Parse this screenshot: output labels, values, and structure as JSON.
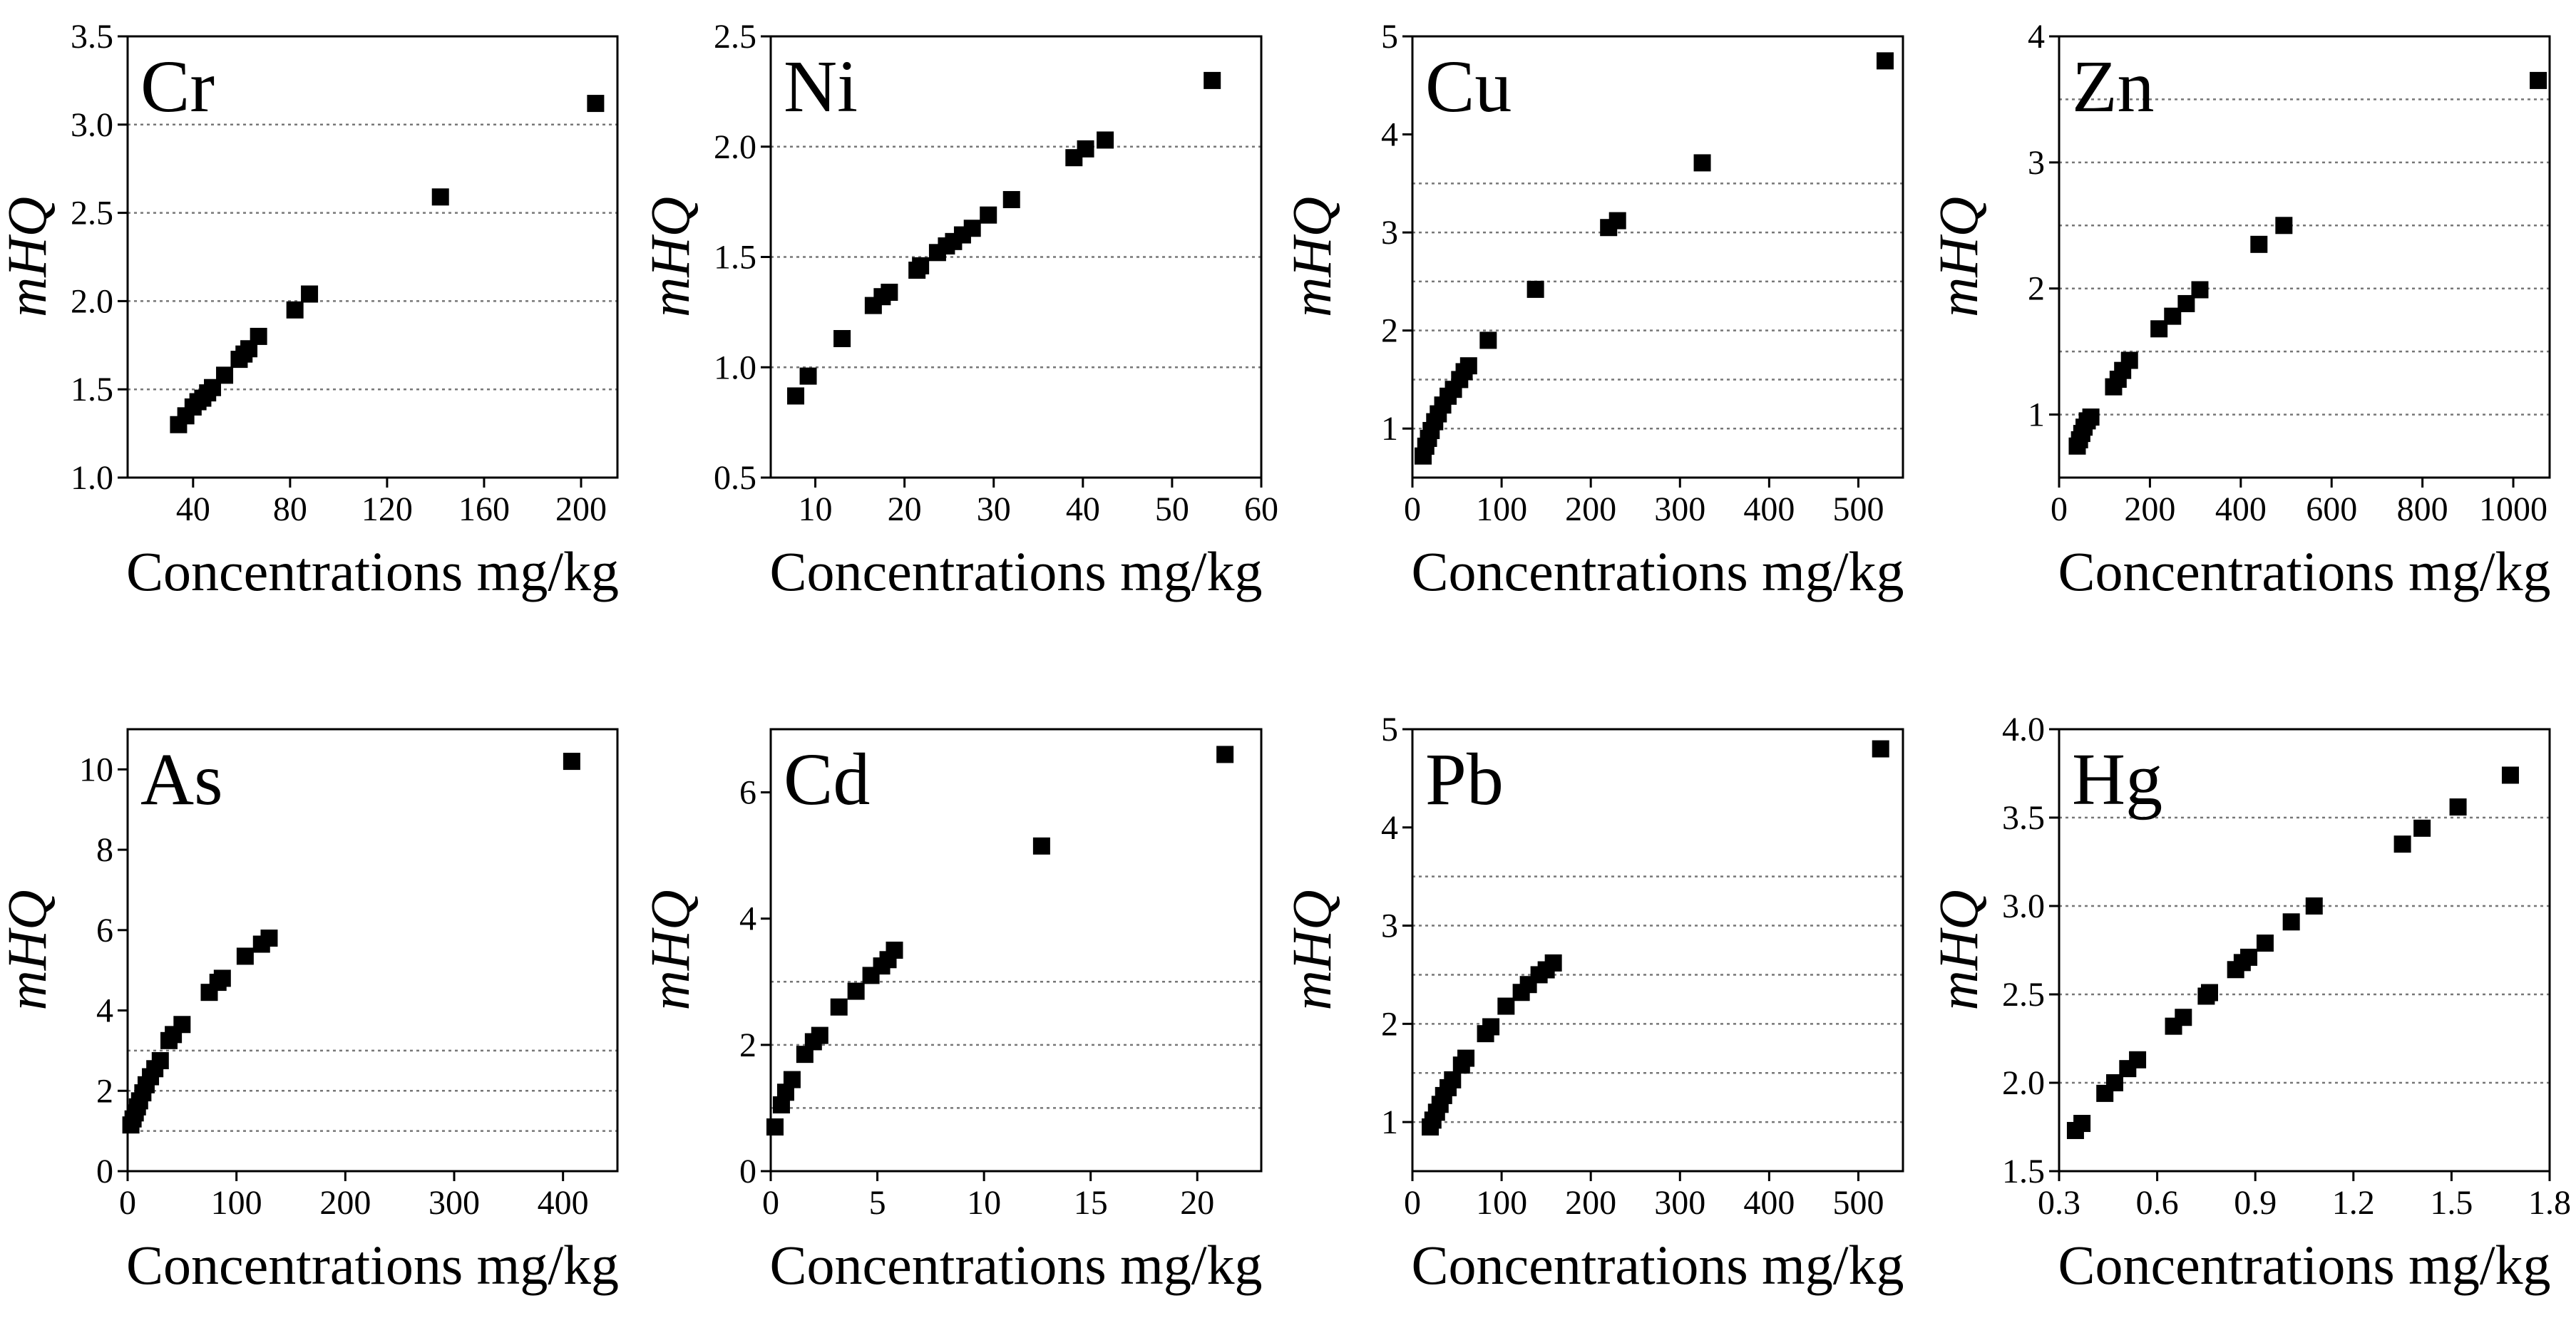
{
  "figure": {
    "x_label_common": "Concentrations mg/kg",
    "y_label_common": "mHQ"
  },
  "chart_data": [
    {
      "type": "scatter",
      "title": "Cr",
      "xlabel": "Concentrations mg/kg",
      "ylabel": "mHQ",
      "xlim": [
        13,
        215
      ],
      "ylim": [
        1.0,
        3.5
      ],
      "xticks": [
        40,
        80,
        120,
        160,
        200
      ],
      "xtick_labels": [
        "40",
        "80",
        "120",
        "160",
        "200"
      ],
      "yticks": [
        1.0,
        1.5,
        2.0,
        2.5,
        3.0,
        3.5
      ],
      "ytick_labels": [
        "1.0",
        "1.5",
        "2.0",
        "2.5",
        "3.0",
        "3.5"
      ],
      "grid_y": [
        1.5,
        2.0,
        2.5,
        3.0
      ],
      "x": [
        34,
        37,
        40,
        42,
        44,
        46,
        48,
        53,
        59,
        61,
        63,
        67,
        82,
        88,
        142,
        206
      ],
      "y": [
        1.3,
        1.35,
        1.4,
        1.43,
        1.45,
        1.48,
        1.51,
        1.58,
        1.67,
        1.7,
        1.73,
        1.8,
        1.95,
        2.04,
        2.59,
        3.12
      ]
    },
    {
      "type": "scatter",
      "title": "Ni",
      "xlabel": "Concentrations mg/kg",
      "ylabel": "mHQ",
      "xlim": [
        5,
        60
      ],
      "ylim": [
        0.5,
        2.5
      ],
      "xticks": [
        10,
        20,
        30,
        40,
        50,
        60
      ],
      "xtick_labels": [
        "10",
        "20",
        "30",
        "40",
        "50",
        "60"
      ],
      "yticks": [
        0.5,
        1.0,
        1.5,
        2.0,
        2.5
      ],
      "ytick_labels": [
        "0.5",
        "1.0",
        "1.5",
        "2.0",
        "2.5"
      ],
      "grid_y": [
        1.0,
        1.5,
        2.0
      ],
      "x": [
        7.8,
        9.2,
        13,
        16.5,
        17.5,
        18.3,
        21.4,
        21.8,
        23.7,
        24.7,
        25.5,
        26.5,
        27.6,
        29.4,
        32.0,
        39.0,
        40.3,
        42.5,
        54.5
      ],
      "y": [
        0.87,
        0.96,
        1.13,
        1.28,
        1.32,
        1.34,
        1.44,
        1.46,
        1.52,
        1.55,
        1.57,
        1.6,
        1.63,
        1.69,
        1.76,
        1.95,
        1.99,
        2.03,
        2.3
      ]
    },
    {
      "type": "scatter",
      "title": "Cu",
      "xlabel": "Concentrations mg/kg",
      "ylabel": "mHQ",
      "xlim": [
        0,
        550
      ],
      "ylim": [
        0.5,
        5
      ],
      "xticks": [
        0,
        100,
        200,
        300,
        400,
        500
      ],
      "xtick_labels": [
        "0",
        "100",
        "200",
        "300",
        "400",
        "500"
      ],
      "yticks": [
        1,
        2,
        3,
        4,
        5
      ],
      "ytick_labels": [
        "1",
        "2",
        "3",
        "4",
        "5"
      ],
      "grid_y": [
        1,
        1.5,
        2,
        2.5,
        3,
        3.5
      ],
      "x": [
        12,
        15,
        18,
        21,
        25,
        29,
        34,
        40,
        46,
        53,
        58,
        63,
        85,
        138,
        220,
        230,
        325,
        530
      ],
      "y": [
        0.72,
        0.82,
        0.9,
        0.98,
        1.07,
        1.15,
        1.24,
        1.33,
        1.4,
        1.5,
        1.58,
        1.64,
        1.9,
        2.42,
        3.05,
        3.12,
        3.71,
        4.75
      ]
    },
    {
      "type": "scatter",
      "title": "Zn",
      "xlabel": "Concentrations mg/kg",
      "ylabel": "mHQ",
      "xlim": [
        0,
        1080
      ],
      "ylim": [
        0.5,
        4
      ],
      "xticks": [
        0,
        200,
        400,
        600,
        800,
        1000
      ],
      "xtick_labels": [
        "0",
        "200",
        "400",
        "600",
        "800",
        "1000"
      ],
      "yticks": [
        1,
        2,
        3,
        4
      ],
      "ytick_labels": [
        "1",
        "2",
        "3",
        "4"
      ],
      "grid_y": [
        1,
        1.5,
        2,
        2.5,
        3,
        3.5
      ],
      "x": [
        40,
        45,
        50,
        55,
        62,
        70,
        120,
        130,
        140,
        155,
        220,
        250,
        280,
        310,
        440,
        495,
        1055
      ],
      "y": [
        0.75,
        0.8,
        0.85,
        0.9,
        0.95,
        0.98,
        1.22,
        1.28,
        1.35,
        1.43,
        1.68,
        1.78,
        1.88,
        1.99,
        2.35,
        2.5,
        3.65
      ]
    },
    {
      "type": "scatter",
      "title": "As",
      "xlabel": "Concentrations mg/kg",
      "ylabel": "mHQ",
      "xlim": [
        0,
        450
      ],
      "ylim": [
        0,
        11
      ],
      "xticks": [
        0,
        100,
        200,
        300,
        400
      ],
      "xtick_labels": [
        "0",
        "100",
        "200",
        "300",
        "400"
      ],
      "yticks": [
        0,
        2,
        4,
        6,
        8,
        10
      ],
      "ytick_labels": [
        "0",
        "2",
        "4",
        "6",
        "8",
        "10"
      ],
      "grid_y": [
        1,
        2,
        3
      ],
      "x": [
        3,
        5,
        7,
        9,
        11,
        14,
        17,
        21,
        25,
        30,
        38,
        42,
        50,
        75,
        83,
        87,
        108,
        123,
        130,
        408
      ],
      "y": [
        1.15,
        1.3,
        1.45,
        1.6,
        1.75,
        1.95,
        2.15,
        2.35,
        2.55,
        2.75,
        3.25,
        3.4,
        3.65,
        4.45,
        4.7,
        4.8,
        5.35,
        5.65,
        5.8,
        10.2
      ]
    },
    {
      "type": "scatter",
      "title": "Cd",
      "xlabel": "Concentrations mg/kg",
      "ylabel": "mHQ",
      "xlim": [
        0,
        23
      ],
      "ylim": [
        0,
        7
      ],
      "xticks": [
        0,
        5,
        10,
        15,
        20
      ],
      "xtick_labels": [
        "0",
        "5",
        "10",
        "15",
        "20"
      ],
      "yticks": [
        0,
        2,
        4,
        6
      ],
      "ytick_labels": [
        "0",
        "2",
        "4",
        "6"
      ],
      "grid_y": [
        1,
        2,
        3
      ],
      "x": [
        0.2,
        0.5,
        0.7,
        1.0,
        1.6,
        2.0,
        2.3,
        3.2,
        4.0,
        4.7,
        5.2,
        5.5,
        5.8,
        12.7,
        21.3
      ],
      "y": [
        0.7,
        1.05,
        1.25,
        1.45,
        1.85,
        2.05,
        2.15,
        2.6,
        2.85,
        3.1,
        3.25,
        3.35,
        3.5,
        5.15,
        6.6
      ]
    },
    {
      "type": "scatter",
      "title": "Pb",
      "xlabel": "Concentrations mg/kg",
      "ylabel": "mHQ",
      "xlim": [
        0,
        550
      ],
      "ylim": [
        0.5,
        5
      ],
      "xticks": [
        0,
        100,
        200,
        300,
        400,
        500
      ],
      "xtick_labels": [
        "0",
        "100",
        "200",
        "300",
        "400",
        "500"
      ],
      "yticks": [
        1,
        2,
        3,
        4,
        5
      ],
      "ytick_labels": [
        "1",
        "2",
        "3",
        "4",
        "5"
      ],
      "grid_y": [
        1,
        1.5,
        2,
        2.5,
        3,
        3.5
      ],
      "x": [
        20,
        23,
        27,
        31,
        35,
        40,
        45,
        55,
        60,
        82,
        88,
        105,
        122,
        130,
        142,
        150,
        158,
        525
      ],
      "y": [
        0.95,
        1.02,
        1.1,
        1.18,
        1.27,
        1.35,
        1.43,
        1.58,
        1.65,
        1.9,
        1.97,
        2.18,
        2.32,
        2.4,
        2.5,
        2.55,
        2.62,
        4.8
      ]
    },
    {
      "type": "scatter",
      "title": "Hg",
      "xlabel": "Concentrations mg/kg",
      "ylabel": "mHQ",
      "xlim": [
        0.3,
        1.8
      ],
      "ylim": [
        1.5,
        4.0
      ],
      "xticks": [
        0.3,
        0.6,
        0.9,
        1.2,
        1.5,
        1.8
      ],
      "xtick_labels": [
        "0.3",
        "0.6",
        "0.9",
        "1.2",
        "1.5",
        "1.8"
      ],
      "yticks": [
        1.5,
        2.0,
        2.5,
        3.0,
        3.5,
        4.0
      ],
      "ytick_labels": [
        "1.5",
        "2.0",
        "2.5",
        "3.0",
        "3.5",
        "4.0"
      ],
      "grid_y": [
        2.0,
        2.5,
        3.0,
        3.5
      ],
      "x": [
        0.35,
        0.37,
        0.44,
        0.47,
        0.51,
        0.54,
        0.65,
        0.68,
        0.75,
        0.76,
        0.84,
        0.86,
        0.88,
        0.93,
        1.01,
        1.08,
        1.35,
        1.41,
        1.52,
        1.68
      ],
      "y": [
        1.73,
        1.77,
        1.94,
        2.0,
        2.08,
        2.13,
        2.32,
        2.37,
        2.49,
        2.51,
        2.64,
        2.68,
        2.71,
        2.79,
        2.91,
        3.0,
        3.35,
        3.44,
        3.56,
        3.74
      ]
    }
  ]
}
